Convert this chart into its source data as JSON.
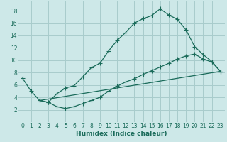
{
  "title": "",
  "xlabel": "Humidex (Indice chaleur)",
  "bg_color": "#cde8e8",
  "grid_color": "#a8cccc",
  "line_color": "#1a6b5a",
  "xlim": [
    -0.5,
    23.5
  ],
  "ylim": [
    0,
    19.5
  ],
  "xticks": [
    0,
    1,
    2,
    3,
    4,
    5,
    6,
    7,
    8,
    9,
    10,
    11,
    12,
    13,
    14,
    15,
    16,
    17,
    18,
    19,
    20,
    21,
    22,
    23
  ],
  "yticks": [
    2,
    4,
    6,
    8,
    10,
    12,
    14,
    16,
    18
  ],
  "curve1_x": [
    0,
    1,
    2,
    3,
    4,
    5,
    6,
    7,
    8,
    9,
    10,
    11,
    12,
    13,
    14,
    15,
    16,
    17,
    18,
    19,
    20,
    21,
    22,
    23
  ],
  "curve1_y": [
    7.1,
    5.0,
    3.5,
    3.2,
    4.6,
    5.5,
    5.9,
    7.3,
    8.8,
    9.5,
    11.5,
    13.2,
    14.5,
    16.0,
    16.7,
    17.2,
    18.3,
    17.3,
    16.6,
    14.9,
    12.2,
    10.9,
    9.8,
    8.2
  ],
  "curve2_x": [
    2,
    3,
    4,
    5,
    6,
    7,
    8,
    9,
    10,
    11,
    12,
    13,
    14,
    15,
    16,
    17,
    18,
    19,
    20,
    21,
    22,
    23
  ],
  "curve2_y": [
    3.5,
    3.2,
    2.5,
    2.2,
    2.5,
    3.0,
    3.5,
    4.0,
    5.0,
    5.8,
    6.5,
    7.0,
    7.7,
    8.3,
    8.9,
    9.5,
    10.2,
    10.7,
    11.0,
    10.2,
    9.7,
    8.2
  ],
  "curve3_x": [
    2,
    23
  ],
  "curve3_y": [
    3.5,
    8.2
  ],
  "marker_style": "+",
  "marker_size": 4,
  "lw": 0.9
}
